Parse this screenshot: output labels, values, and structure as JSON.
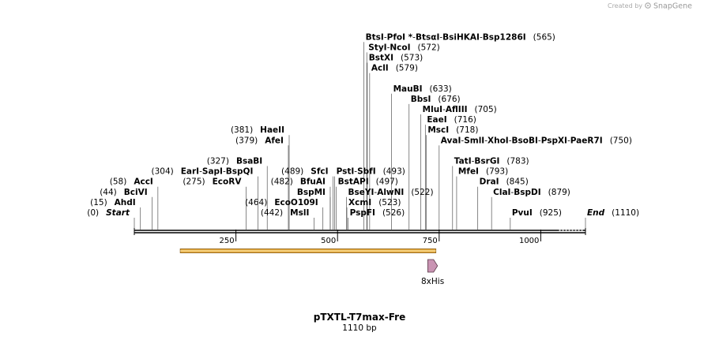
{
  "credit": {
    "prefix": "Created by",
    "brand": "SnapGene",
    "icon": "snapgene-logo-icon"
  },
  "plasmid": {
    "name": "pTXTL-T7max-Fre",
    "size_label": "1110 bp"
  },
  "sequence": {
    "length": 1110
  },
  "ruler": {
    "ticks": [
      {
        "value": 250,
        "label": "250"
      },
      {
        "value": 500,
        "label": "500"
      },
      {
        "value": 750,
        "label": "750"
      },
      {
        "value": 1000,
        "label": "1000"
      }
    ]
  },
  "features": [
    {
      "name": "",
      "start": 113,
      "end": 742,
      "color": "#e5a93a",
      "direction": "forward"
    },
    {
      "name": "8xHis",
      "start": 722,
      "end": 746,
      "color": "#c994b3",
      "direction": "forward"
    }
  ],
  "sites": [
    {
      "row": 0,
      "side": "left",
      "pos_label": "(0)",
      "names": [
        "Start"
      ],
      "italic": true,
      "positions": [
        0
      ]
    },
    {
      "row": 0,
      "side": "left",
      "pos_label": "(15)",
      "names": [
        "AhdI"
      ],
      "positions": [
        15
      ],
      "row_override": 1
    },
    {
      "row": 2,
      "side": "left",
      "pos_label": "(44)",
      "names": [
        "BciVI"
      ],
      "positions": [
        44
      ]
    },
    {
      "row": 3,
      "side": "left",
      "pos_label": "(58)",
      "names": [
        "AccI"
      ],
      "positions": [
        58
      ]
    },
    {
      "row": 4,
      "side": "left",
      "pos_label": "(304)",
      "names": [
        "EarI",
        "SapI",
        "BspQI"
      ],
      "positions": [
        304
      ]
    },
    {
      "row": 3,
      "side": "left",
      "pos_label": "(275)",
      "names": [
        "EcoRV"
      ],
      "positions": [
        275
      ]
    },
    {
      "row": 5,
      "side": "left",
      "pos_label": "(327)",
      "names": [
        "BsaBI"
      ],
      "positions": [
        327
      ]
    },
    {
      "row": 7,
      "side": "left",
      "pos_label": "(379)",
      "names": [
        "AfeI"
      ],
      "positions": [
        379
      ]
    },
    {
      "row": 8,
      "side": "left",
      "pos_label": "(381)",
      "names": [
        "HaeII"
      ],
      "positions": [
        381
      ]
    },
    {
      "row": 0,
      "side": "left",
      "pos_label": "(442)",
      "names": [
        "MslI"
      ],
      "positions": [
        442
      ]
    },
    {
      "row": 1,
      "side": "left",
      "pos_label": "(464)",
      "names": [
        "EcoO109I"
      ],
      "positions": [
        464
      ]
    },
    {
      "row": 2,
      "side": "left",
      "pos_label": "",
      "names": [
        "BspMI"
      ],
      "positions": [
        482
      ]
    },
    {
      "row": 3,
      "side": "left",
      "pos_label": "(482)",
      "names": [
        "BfuAI"
      ],
      "positions": [
        482
      ]
    },
    {
      "row": 4,
      "side": "left",
      "pos_label": "(489)",
      "names": [
        "SfcI"
      ],
      "positions": [
        489
      ]
    },
    {
      "row": 4,
      "side": "right",
      "pos_label": "(493)",
      "names": [
        "PstI",
        "SbfI"
      ],
      "positions": [
        493
      ]
    },
    {
      "row": 3,
      "side": "right",
      "pos_label": "(497)",
      "names": [
        "BstAPI"
      ],
      "positions": [
        497
      ]
    },
    {
      "row": 2,
      "side": "right",
      "pos_label": "(522)",
      "names": [
        "BseYI",
        "AlwNI"
      ],
      "positions": [
        522
      ]
    },
    {
      "row": 1,
      "side": "right",
      "pos_label": "(523)",
      "names": [
        "XcmI"
      ],
      "positions": [
        523
      ]
    },
    {
      "row": 0,
      "side": "right",
      "pos_label": "(526)",
      "names": [
        "PspFI"
      ],
      "positions": [
        526
      ]
    },
    {
      "row": 17,
      "side": "right",
      "pos_label": "(565)",
      "names": [
        "BtsI",
        "PfoI *",
        "BtsαI",
        "BsiHKAI",
        "Bsp1286I"
      ],
      "positions": [
        565
      ]
    },
    {
      "row": 16,
      "side": "right",
      "pos_label": "(572)",
      "names": [
        "StyI",
        "NcoI"
      ],
      "positions": [
        572
      ]
    },
    {
      "row": 15,
      "side": "right",
      "pos_label": "(573)",
      "names": [
        "BstXI"
      ],
      "positions": [
        573
      ]
    },
    {
      "row": 14,
      "side": "right",
      "pos_label": "(579)",
      "names": [
        "AclI"
      ],
      "positions": [
        579
      ]
    },
    {
      "row": 12,
      "side": "right",
      "pos_label": "(633)",
      "names": [
        "MauBI"
      ],
      "positions": [
        633
      ]
    },
    {
      "row": 11,
      "side": "right",
      "pos_label": "(676)",
      "names": [
        "BbsI"
      ],
      "positions": [
        676
      ]
    },
    {
      "row": 10,
      "side": "right",
      "pos_label": "(705)",
      "names": [
        "MluI",
        "AflIII"
      ],
      "positions": [
        705
      ]
    },
    {
      "row": 9,
      "side": "right",
      "pos_label": "(716)",
      "names": [
        "EaeI"
      ],
      "positions": [
        716
      ]
    },
    {
      "row": 8,
      "side": "right",
      "pos_label": "(718)",
      "names": [
        "MscI"
      ],
      "positions": [
        718
      ]
    },
    {
      "row": 7,
      "side": "right",
      "pos_label": "(750)",
      "names": [
        "AvaI",
        "SmlI",
        "XhoI",
        "BsoBI",
        "PspXI",
        "PaeR7I"
      ],
      "positions": [
        750
      ]
    },
    {
      "row": 5,
      "side": "right",
      "pos_label": "(783)",
      "names": [
        "TatI",
        "BsrGI"
      ],
      "positions": [
        783
      ]
    },
    {
      "row": 4,
      "side": "right",
      "pos_label": "(793)",
      "names": [
        "MfeI"
      ],
      "positions": [
        793
      ]
    },
    {
      "row": 3,
      "side": "right",
      "pos_label": "(845)",
      "names": [
        "DraI"
      ],
      "positions": [
        845
      ]
    },
    {
      "row": 2,
      "side": "right",
      "pos_label": "(879)",
      "names": [
        "ClaI",
        "BspDI"
      ],
      "positions": [
        879
      ]
    },
    {
      "row": 0,
      "side": "right",
      "pos_label": "(925)",
      "names": [
        "PvuI"
      ],
      "positions": [
        925
      ]
    },
    {
      "row": 0,
      "side": "right",
      "pos_label": "(1110)",
      "names": [
        "End"
      ],
      "italic": true,
      "positions": [
        1110
      ]
    }
  ]
}
